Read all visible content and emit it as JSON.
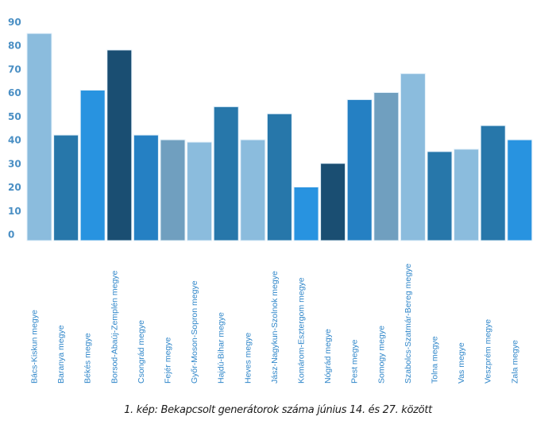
{
  "chart_data": {
    "type": "bar",
    "title": "",
    "xlabel": "",
    "ylabel": "",
    "ylim": [
      0,
      90
    ],
    "yticks": [
      0,
      10,
      20,
      30,
      40,
      50,
      60,
      70,
      80,
      90
    ],
    "grid": false,
    "legend": "none",
    "categories": [
      "Bács-Kiskun megye",
      "Baranya megye",
      "Békés megye",
      "Borsod-Abaúj-Zemplén megye",
      "Csongrád megye",
      "Fejér megye",
      "Győr-Moson-Sopron megye",
      "Hajdú-Bihar megye",
      "Heves megye",
      "Jász-Nagykun-Szolnok megye",
      "Komárom-Esztergom megye",
      "Nógrád megye",
      "Pest megye",
      "Somogy megye",
      "Szabolcs-Szatmár-Bereg megye",
      "Tolna megye",
      "Vas megye",
      "Veszprém megye",
      "Zala megye"
    ],
    "values": [
      85,
      42,
      61,
      78,
      42,
      40,
      39,
      54,
      40,
      51,
      20,
      30,
      57,
      60,
      68,
      35,
      36,
      46,
      40
    ],
    "colors": [
      "#8bbcdd",
      "#2777aa",
      "#2893e0",
      "#1a4e72",
      "#2580c3",
      "#709fbf",
      "#8bbcdd",
      "#2777aa",
      "#8bbcdd",
      "#2777aa",
      "#2893e0",
      "#1a4e72",
      "#2580c3",
      "#709fbf",
      "#8bbcdd",
      "#2777aa",
      "#8bbcdd",
      "#2777aa",
      "#2893e0"
    ]
  },
  "caption": "1. kép: Bekapcsolt generátorok száma június 14. és 27. között"
}
